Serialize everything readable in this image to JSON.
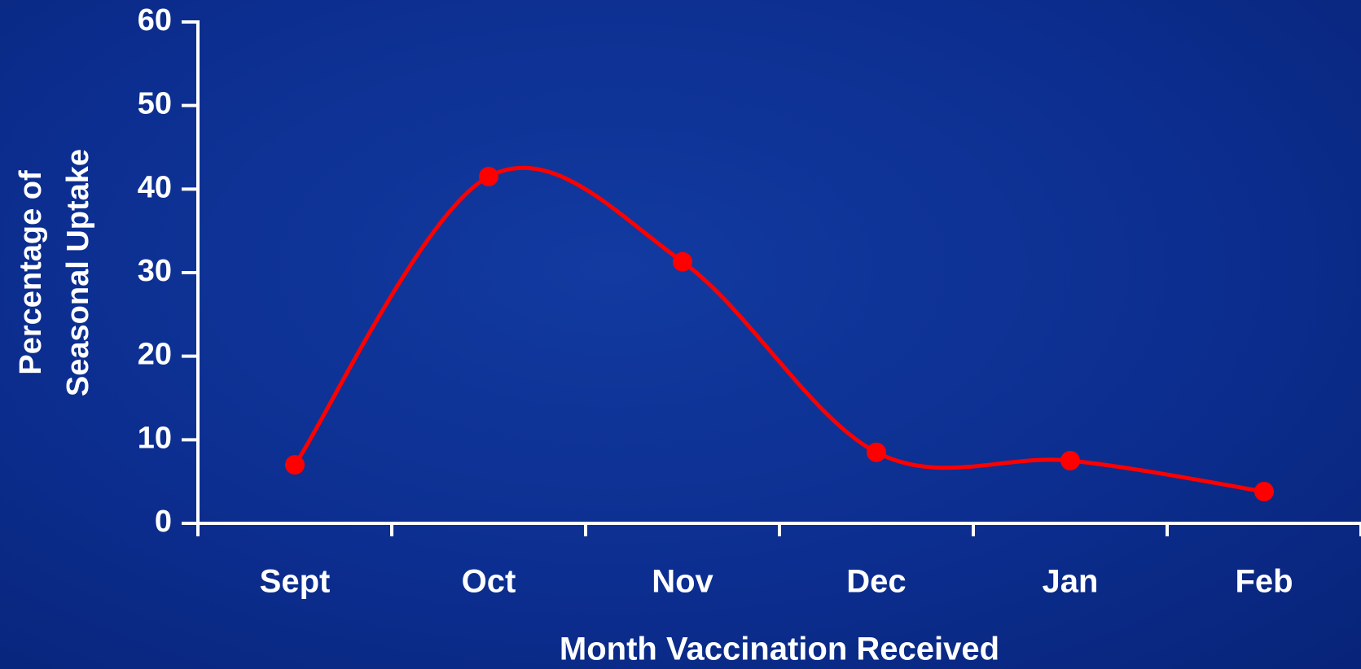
{
  "chart_data": {
    "type": "line",
    "categories": [
      "Sept",
      "Oct",
      "Nov",
      "Dec",
      "Jan",
      "Feb"
    ],
    "series": [
      {
        "name": "Seasonal Uptake",
        "color": "#ff0000",
        "values": [
          7,
          41.5,
          31.3,
          8.5,
          7.5,
          3.8
        ]
      }
    ],
    "ylim": [
      0,
      60
    ],
    "yticks": [
      0,
      10,
      20,
      30,
      40,
      50,
      60
    ],
    "ylabel": [
      "Percentage of",
      "Seasonal Uptake"
    ],
    "xlabel": "Month Vaccination Received",
    "smooth": true,
    "markers": true
  }
}
